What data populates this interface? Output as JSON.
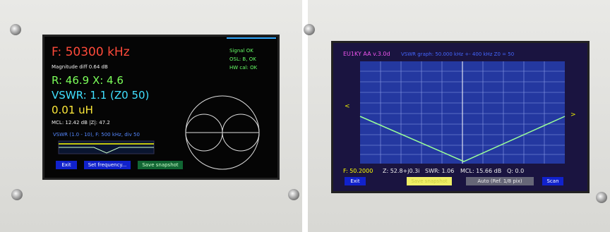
{
  "left_screen": {
    "frequency": "F: 50300 kHz",
    "magnitude_diff": "Magnitude diff 0.64 dB",
    "status": [
      "Signal OK",
      "OSL: B, OK",
      "HW cal: OK"
    ],
    "impedance": "R: 46.9  X: 4.6",
    "vswr": "VSWR: 1.1 (Z0 50)",
    "inductance": "0.01 uH",
    "mcl": "MCL: 12.42 dB  |Z|: 47.2",
    "graph_label": "VSWR (1.0 - 10), F: 500 kHz, div 50",
    "buttons": [
      "Exit",
      "Set frequency...",
      "Save snapshot"
    ]
  },
  "right_screen": {
    "title": "EU1KY AA v.3.0d",
    "graph_header": "VSWR graph: 50.000 kHz +- 400 kHz  Z0 = 50",
    "arrows": [
      "<",
      ">"
    ],
    "readout": [
      "F: 50.2000",
      "Z: 52.8+j0.3i",
      "SWR: 1.06",
      "MCL: 15.66 dB",
      "Q: 0.0"
    ],
    "buttons": [
      "Exit",
      "Save snapshot",
      "Auto (Ref. 1/8 pix)",
      "Scan"
    ]
  }
}
